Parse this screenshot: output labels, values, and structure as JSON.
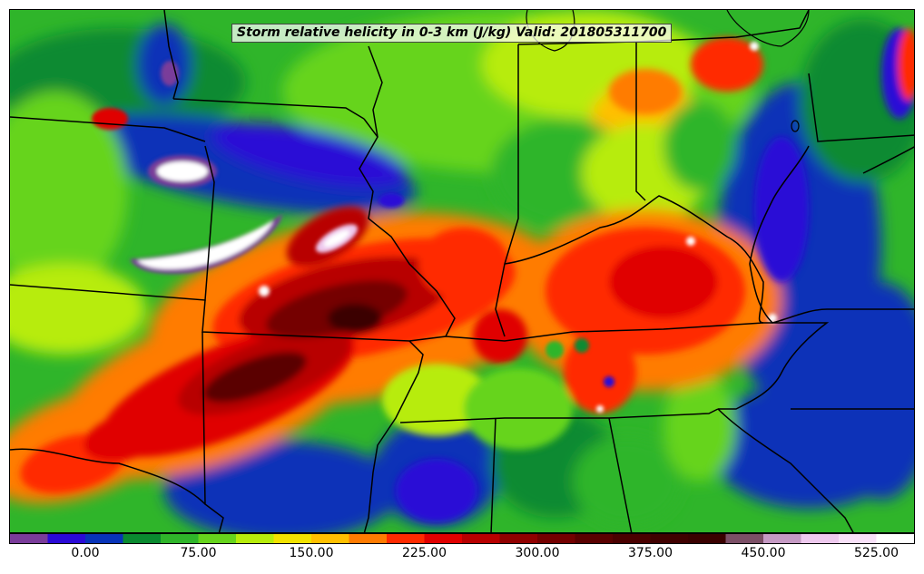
{
  "map": {
    "title": "Storm relative helicity in 0-3 km (J/kg) Valid: 201805311700",
    "field": "Storm relative helicity 0-3 km",
    "units": "J/kg",
    "valid_time": "201805311700",
    "region": "central-eastern United States"
  },
  "colorbar": {
    "levels": [
      -50,
      -25,
      0,
      25,
      50,
      75,
      100,
      125,
      150,
      175,
      200,
      225,
      250,
      275,
      300,
      325,
      350,
      375,
      400,
      425,
      450,
      475,
      500,
      525,
      550
    ],
    "colors": [
      "#7a3c9a",
      "#2a0ad6",
      "#0833b8",
      "#0a8a30",
      "#2fb52a",
      "#66d41c",
      "#b7ec0b",
      "#f2e200",
      "#ffc000",
      "#ff7b00",
      "#ff2a00",
      "#e00000",
      "#b80000",
      "#900000",
      "#740000",
      "#5a0000",
      "#4a0000",
      "#400000",
      "#3a0000",
      "#7b4f66",
      "#c59ac4",
      "#eec9ee",
      "#f8e0f8",
      "#ffffff"
    ],
    "tick_labels": [
      {
        "text": "0.00",
        "value": 0
      },
      {
        "text": "75.00",
        "value": 75
      },
      {
        "text": "150.00",
        "value": 150
      },
      {
        "text": "225.00",
        "value": 225
      },
      {
        "text": "300.00",
        "value": 300
      },
      {
        "text": "375.00",
        "value": 375
      },
      {
        "text": "450.00",
        "value": 450
      },
      {
        "text": "525.00",
        "value": 525
      }
    ]
  }
}
